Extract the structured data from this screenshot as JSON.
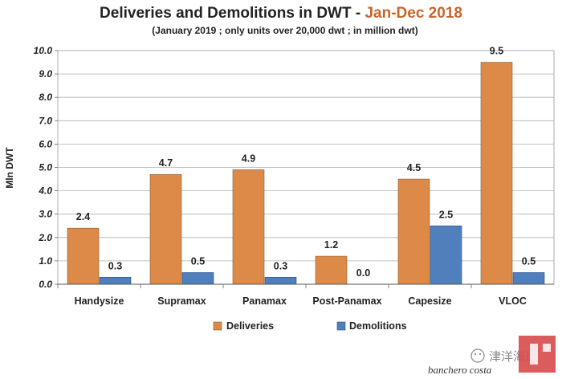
{
  "chart_data": {
    "type": "bar",
    "title": "Deliveries and Demolitions in DWT - ",
    "title_highlight": "Jan-Dec 2018",
    "subtitle": "(January 2019 ; only units over 20,000 dwt ; in million dwt)",
    "xlabel": "",
    "ylabel": "Mln DWT",
    "ylim": [
      0,
      10
    ],
    "yticks": [
      "0.0",
      "1.0",
      "2.0",
      "3.0",
      "4.0",
      "5.0",
      "6.0",
      "7.0",
      "8.0",
      "9.0",
      "10.0"
    ],
    "grid": true,
    "legend_position": "bottom",
    "categories": [
      "Handysize",
      "Supramax",
      "Panamax",
      "Post-Panamax",
      "Capesize",
      "VLOC"
    ],
    "series": [
      {
        "name": "Deliveries",
        "color": "#dd8a48",
        "values": [
          2.4,
          4.7,
          4.9,
          1.2,
          4.5,
          9.5
        ],
        "labels": [
          "2.4",
          "4.7",
          "4.9",
          "1.2",
          "4.5",
          "9.5"
        ]
      },
      {
        "name": "Demolitions",
        "color": "#4f7fbd",
        "values": [
          0.3,
          0.5,
          0.3,
          0.0,
          2.5,
          0.5
        ],
        "labels": [
          "0.3",
          "0.5",
          "0.3",
          "0.0",
          "2.5",
          "0.5"
        ]
      }
    ]
  },
  "watermark": {
    "chinese_text": "津洋海运",
    "brand": "banchero costa",
    "icon": "wechat-icon",
    "logo": "bc-logo"
  }
}
